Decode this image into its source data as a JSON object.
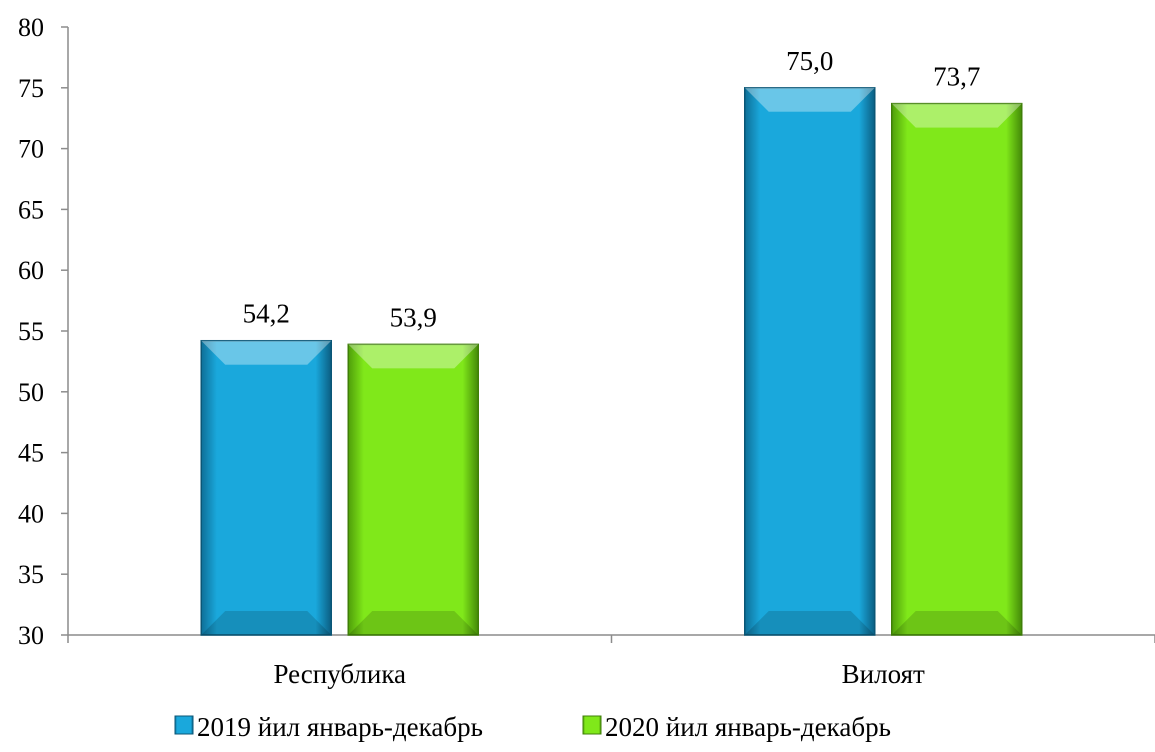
{
  "chart_data": {
    "type": "bar",
    "categories": [
      "Республика",
      "Вилоят"
    ],
    "series": [
      {
        "name": "2019 йил январь-декабрь",
        "values": [
          54.2,
          75.0
        ],
        "labels": [
          "54,2",
          "75,0"
        ],
        "color": "#1aa8dc"
      },
      {
        "name": "2020 йил январь-декабрь",
        "values": [
          53.9,
          73.7
        ],
        "labels": [
          "53,9",
          "73,7"
        ],
        "color": "#80e81a"
      }
    ],
    "ylim": [
      30,
      80
    ],
    "yticks": [
      30,
      35,
      40,
      45,
      50,
      55,
      60,
      65,
      70,
      75,
      80
    ],
    "grid": false,
    "legend": "bottom",
    "title": "",
    "xlabel": "",
    "ylabel": ""
  }
}
